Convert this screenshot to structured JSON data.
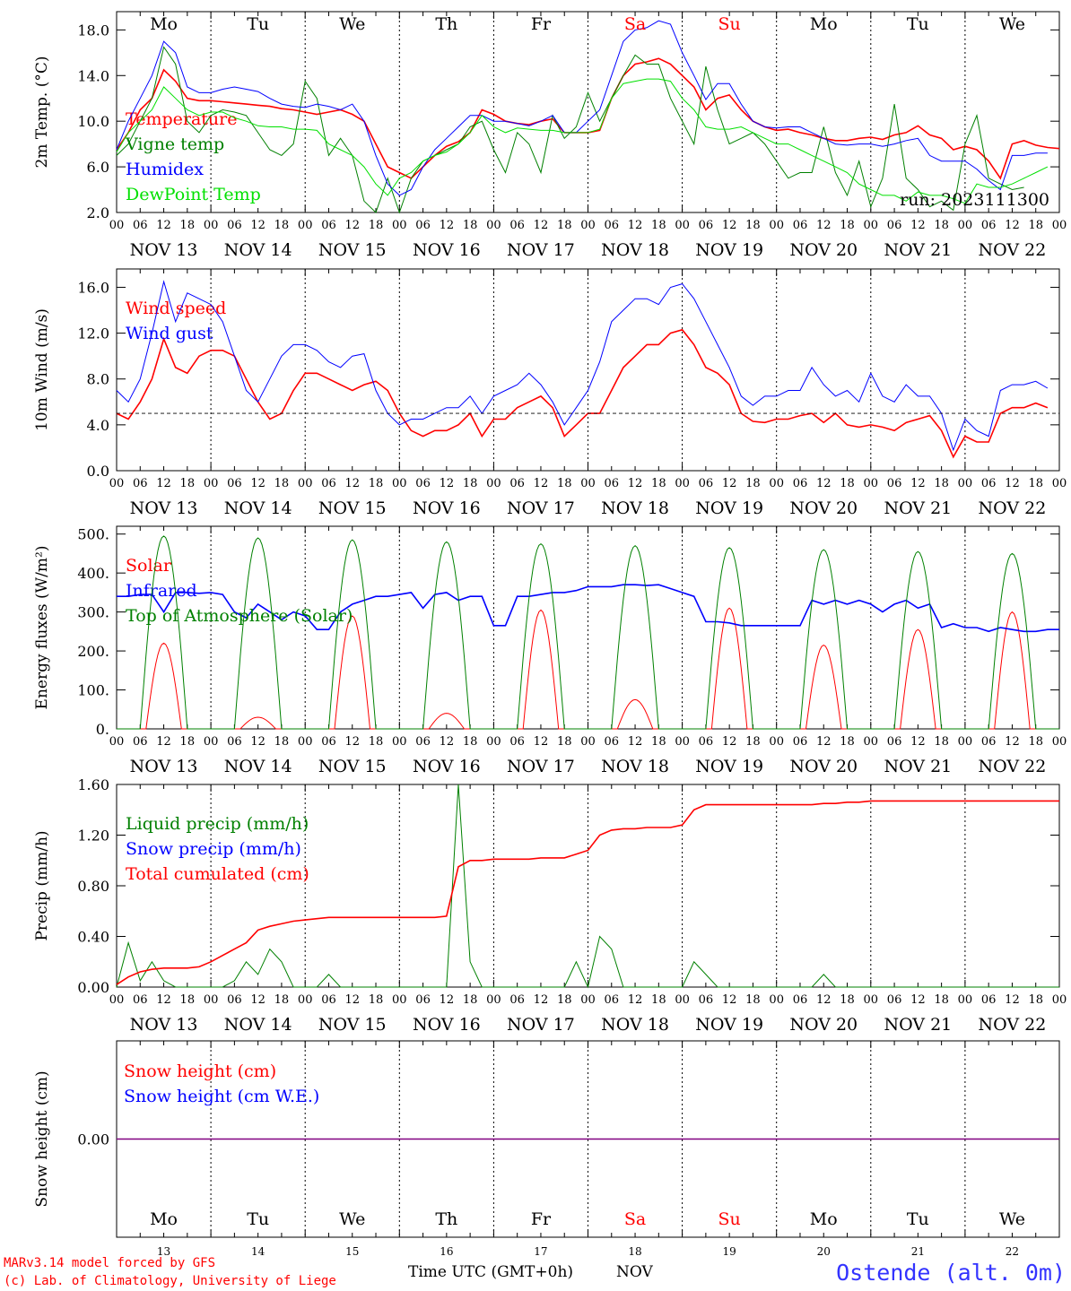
{
  "colors": {
    "red": "#ff0000",
    "green": "#008000",
    "blue": "#0000ff",
    "lime": "#00e000",
    "purple": "#800080",
    "text": "#000000"
  },
  "day_names": [
    "Mo",
    "Tu",
    "We",
    "Th",
    "Fr",
    "Sa",
    "Su",
    "Mo",
    "Tu",
    "We"
  ],
  "weekend_days": [
    5,
    6
  ],
  "dates": [
    "NOV 13",
    "NOV 14",
    "NOV 15",
    "NOV 16",
    "NOV 17",
    "NOV 18",
    "NOV 19",
    "NOV 20",
    "NOV 21",
    "NOV 22"
  ],
  "hour_ticks": [
    "00",
    "06",
    "12",
    "18"
  ],
  "last_tick": "00",
  "bottom_day_numbers": [
    "13",
    "14",
    "15",
    "16",
    "17",
    "18",
    "19",
    "20",
    "21",
    "22"
  ],
  "footer": {
    "model": "MARv3.14 model forced by GFS",
    "lab": "(c) Lab. of Climatology, University of Liege",
    "xlabel": "Time UTC (GMT+0h)",
    "month": "NOV",
    "station": "Ostende (alt. 0m)"
  },
  "chart_data": [
    {
      "type": "line",
      "ylabel": "2m Temp. (°C)",
      "ylim": [
        2,
        19.6
      ],
      "yticks": [
        "2.0",
        "6.0",
        "10.0",
        "14.0",
        "18.0"
      ],
      "run_label": "run: 2023111300",
      "x_hours_step": 3,
      "series": [
        {
          "name": "Temperature",
          "color": "red",
          "values": [
            7.5,
            9,
            11,
            12,
            14.5,
            13.5,
            12,
            11.8,
            11.8,
            11.7,
            11.6,
            11.5,
            11.4,
            11.3,
            11.1,
            11,
            10.8,
            10.6,
            10.8,
            11,
            10.6,
            10,
            8,
            6,
            5.5,
            5,
            6,
            7,
            7.8,
            8.2,
            9,
            11,
            10.6,
            10,
            9.8,
            9.7,
            10,
            10.2,
            9,
            9,
            9,
            9.2,
            12,
            14,
            15,
            15.2,
            15.5,
            15,
            14,
            13,
            11,
            12,
            12.3,
            11,
            10,
            9.5,
            9.2,
            9.3,
            9,
            8.8,
            8.5,
            8.3,
            8.3,
            8.5,
            8.6,
            8.4,
            8.8,
            9,
            9.6,
            8.8,
            8.5,
            7.5,
            7.8,
            7.5,
            6.5,
            5,
            8,
            8.3,
            7.9,
            7.7,
            7.6
          ]
        },
        {
          "name": "Vigne temp",
          "color": "green",
          "values": [
            7,
            8,
            10,
            12,
            16.5,
            15,
            10,
            9,
            10.5,
            11,
            10.8,
            10.5,
            9,
            7.5,
            7,
            8,
            13.5,
            12,
            7,
            8.5,
            7,
            3,
            2,
            5,
            2,
            5,
            6.5,
            7,
            7.5,
            8,
            9.5,
            10,
            7.5,
            5.5,
            9,
            8,
            5.5,
            10.5,
            8.5,
            9.5,
            12.5,
            10,
            12,
            14,
            15.8,
            15,
            15,
            12,
            10,
            8,
            14.8,
            11,
            8,
            8.5,
            9,
            8,
            6.5,
            5,
            5.5,
            5.5,
            9.5,
            5.5,
            3.5,
            6.5,
            2.5,
            5,
            11.5,
            5,
            4,
            2.5,
            3,
            2.2,
            8,
            10.5,
            5,
            4.5,
            4,
            4.2
          ]
        },
        {
          "name": "Humidex",
          "color": "blue",
          "values": [
            7.5,
            10,
            12,
            14,
            17,
            16,
            13,
            12.5,
            12.5,
            12.8,
            13,
            12.8,
            12.6,
            12,
            11.5,
            11.3,
            11.2,
            11.5,
            11.3,
            11,
            11.5,
            10,
            7,
            4.5,
            3.5,
            4,
            6,
            7.5,
            8.5,
            9.5,
            10.5,
            10.5,
            10,
            10,
            9.8,
            9.6,
            10,
            10.5,
            9,
            9,
            10,
            11,
            14,
            17,
            18,
            18.2,
            18.8,
            18.5,
            16,
            14,
            11.9,
            13.3,
            13.3,
            11.5,
            10,
            9.5,
            9.4,
            9.5,
            9.5,
            9,
            8.5,
            8,
            7.9,
            8,
            8,
            7.8,
            8,
            8.3,
            8.5,
            7,
            6.5,
            6.5,
            6.5,
            5.8,
            4.8,
            4,
            7,
            7,
            7.2,
            7.2
          ]
        },
        {
          "name": "DewPoint Temp",
          "color": "lime",
          "values": [
            7.3,
            9,
            10,
            11,
            13,
            12,
            11,
            10.5,
            10.8,
            10.8,
            10.3,
            10,
            9.6,
            9.5,
            9.5,
            9.3,
            9.3,
            9.2,
            8,
            7.5,
            7,
            6,
            4.5,
            3.5,
            5,
            5.5,
            6.5,
            7,
            7.3,
            8,
            9,
            10.5,
            9.5,
            9,
            9.4,
            9.3,
            9.2,
            9.2,
            9,
            9,
            9,
            9.3,
            12,
            13.3,
            13.5,
            13.7,
            13.7,
            13.5,
            12,
            11,
            9.5,
            9.3,
            9.3,
            9.5,
            9,
            8.5,
            8,
            8,
            7.5,
            7,
            6.5,
            6,
            5.5,
            4.5,
            4,
            3.5,
            3.5,
            3,
            3.8,
            3.5,
            3.5,
            3.2,
            2.8,
            4.5,
            4.2,
            4.2,
            4.5,
            5,
            5.5,
            6
          ]
        }
      ]
    },
    {
      "type": "line",
      "ylabel": "10m Wind (m/s)",
      "ylim": [
        0,
        17.6
      ],
      "yticks": [
        "0.0",
        "4.0",
        "8.0",
        "12.0",
        "16.0"
      ],
      "reference_y": 5.0,
      "x_hours_step": 3,
      "series": [
        {
          "name": "Wind speed",
          "color": "red",
          "values": [
            5,
            4.5,
            6,
            8,
            11.5,
            9,
            8.5,
            10,
            10.5,
            10.5,
            10,
            8,
            6,
            4.5,
            5,
            7,
            8.5,
            8.5,
            8,
            7.5,
            7,
            7.5,
            7.8,
            7,
            5,
            3.5,
            3,
            3.5,
            3.5,
            4,
            5,
            3,
            4.5,
            4.5,
            5.5,
            6,
            6.5,
            5.5,
            3,
            4,
            5,
            5,
            7,
            9,
            10,
            11,
            11,
            12,
            12.3,
            11,
            9,
            8.5,
            7.5,
            5,
            4.3,
            4.2,
            4.5,
            4.5,
            4.8,
            5,
            4.2,
            5,
            4,
            3.8,
            4,
            3.8,
            3.5,
            4.2,
            4.5,
            4.8,
            3.5,
            1.2,
            3,
            2.5,
            2.5,
            5,
            5.5,
            5.5,
            5.9,
            5.5
          ]
        },
        {
          "name": "Wind gust",
          "color": "blue",
          "values": [
            7,
            6,
            8,
            12,
            16.5,
            13,
            15.5,
            15,
            14.5,
            13,
            10,
            7,
            6,
            8,
            10,
            11,
            11,
            10.5,
            9.5,
            9,
            10,
            10.2,
            7,
            5,
            4,
            4.5,
            4.5,
            5,
            5.5,
            5.5,
            6.5,
            5,
            6.5,
            7,
            7.5,
            8.5,
            7.5,
            6,
            4,
            5.5,
            7,
            9.5,
            13,
            14,
            15,
            15,
            14.5,
            16,
            16.3,
            15,
            13,
            11,
            9,
            6.5,
            5.7,
            6.5,
            6.5,
            7,
            7,
            9,
            7.5,
            6.5,
            7,
            6,
            8.5,
            6.5,
            6,
            7.5,
            6.5,
            6.5,
            5,
            1.8,
            4.5,
            3.5,
            3,
            7,
            7.5,
            7.5,
            7.8,
            7.2
          ]
        }
      ]
    },
    {
      "type": "line",
      "ylabel": "Energy fluxes (W/m²)",
      "ylim": [
        0,
        520
      ],
      "yticks": [
        "0.",
        "100.",
        "200.",
        "300.",
        "400.",
        "500."
      ],
      "series": [
        {
          "name": "Solar",
          "color": "red",
          "peaks": [
            220,
            30,
            290,
            40,
            305,
            75,
            310,
            215,
            255,
            300
          ]
        },
        {
          "name": "Infrared",
          "color": "blue",
          "values": [
            340,
            340,
            345,
            345,
            300,
            350,
            350,
            348,
            350,
            345,
            300,
            285,
            320,
            300,
            280,
            300,
            290,
            255,
            255,
            300,
            320,
            330,
            340,
            340,
            345,
            350,
            310,
            345,
            350,
            330,
            340,
            340,
            265,
            265,
            340,
            340,
            345,
            350,
            350,
            355,
            365,
            365,
            365,
            370,
            370,
            368,
            370,
            360,
            350,
            340,
            275,
            275,
            272,
            265,
            265,
            265,
            265,
            265,
            265,
            330,
            320,
            330,
            320,
            330,
            320,
            300,
            320,
            330,
            310,
            320,
            260,
            270,
            260,
            260,
            250,
            260,
            255,
            250,
            250,
            255,
            255
          ]
        },
        {
          "name": "Top of Atmosphere (Solar)",
          "color": "green",
          "peaks": [
            495,
            490,
            485,
            480,
            475,
            470,
            465,
            460,
            455,
            450
          ]
        }
      ]
    },
    {
      "type": "line",
      "ylabel": "Precip (mm/h)",
      "ylim": [
        0,
        1.6
      ],
      "yticks": [
        "0.00",
        "0.40",
        "0.80",
        "1.20",
        "1.60"
      ],
      "series": [
        {
          "name": "Liquid precip (mm/h)",
          "color": "green",
          "values": [
            0,
            0.35,
            0.05,
            0.2,
            0.05,
            0,
            0,
            0,
            0,
            0,
            0.05,
            0.2,
            0.1,
            0.3,
            0.2,
            0,
            0,
            0,
            0.1,
            0,
            0,
            0,
            0,
            0,
            0,
            0,
            0,
            0,
            0,
            1.6,
            0.2,
            0,
            0,
            0,
            0,
            0,
            0,
            0,
            0,
            0.2,
            0,
            0.4,
            0.3,
            0,
            0,
            0,
            0,
            0,
            0,
            0.2,
            0.1,
            0,
            0,
            0,
            0,
            0,
            0,
            0,
            0,
            0,
            0.1,
            0,
            0,
            0,
            0,
            0,
            0,
            0,
            0,
            0,
            0,
            0,
            0,
            0,
            0,
            0,
            0,
            0,
            0,
            0,
            0
          ]
        },
        {
          "name": "Snow precip (mm/h)",
          "color": "blue",
          "values": []
        },
        {
          "name": "Total cumulated (cm)",
          "color": "red",
          "values": [
            0.02,
            0.08,
            0.12,
            0.14,
            0.15,
            0.15,
            0.15,
            0.16,
            0.2,
            0.25,
            0.3,
            0.35,
            0.45,
            0.48,
            0.5,
            0.52,
            0.53,
            0.54,
            0.55,
            0.55,
            0.55,
            0.55,
            0.55,
            0.55,
            0.55,
            0.55,
            0.55,
            0.55,
            0.56,
            0.95,
            1.0,
            1.0,
            1.01,
            1.01,
            1.01,
            1.01,
            1.02,
            1.02,
            1.02,
            1.05,
            1.08,
            1.2,
            1.24,
            1.25,
            1.25,
            1.26,
            1.26,
            1.26,
            1.28,
            1.4,
            1.44,
            1.44,
            1.44,
            1.44,
            1.44,
            1.44,
            1.44,
            1.44,
            1.44,
            1.44,
            1.45,
            1.45,
            1.46,
            1.46,
            1.47,
            1.47,
            1.47,
            1.47,
            1.47,
            1.47,
            1.47,
            1.47,
            1.47,
            1.47,
            1.47,
            1.47,
            1.47,
            1.47,
            1.47,
            1.47,
            1.47
          ]
        }
      ]
    },
    {
      "type": "line",
      "ylabel": "Snow height (cm)",
      "ylim": [
        -1,
        1
      ],
      "yticks": [
        "0.00"
      ],
      "series": [
        {
          "name": "Snow height (cm)",
          "color": "red",
          "values": [
            0,
            0
          ]
        },
        {
          "name": "Snow height (cm W.E.)",
          "color": "blue",
          "values": [
            0,
            0
          ]
        }
      ]
    }
  ]
}
